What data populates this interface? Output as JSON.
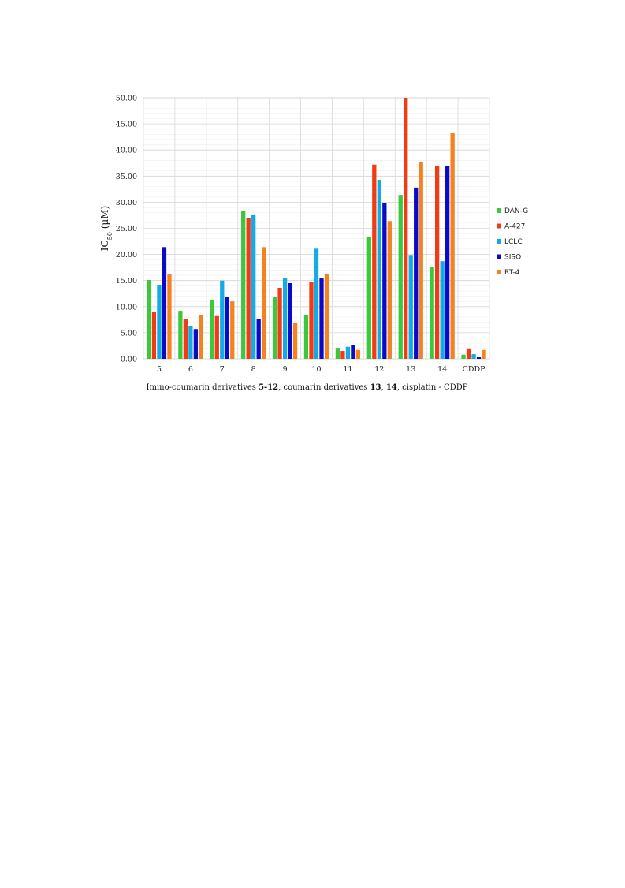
{
  "chart_data": {
    "type": "bar",
    "ylabel": {
      "main": "IC",
      "sub": "50",
      "unit": " (µM)"
    },
    "xlabel_parts": [
      {
        "text": "Imino-coumarin derivatives ",
        "bold": false
      },
      {
        "text": "5-12",
        "bold": true
      },
      {
        "text": ", coumarin derivatives ",
        "bold": false
      },
      {
        "text": "13",
        "bold": true
      },
      {
        "text": ", ",
        "bold": false
      },
      {
        "text": "14",
        "bold": true
      },
      {
        "text": ", cisplatin - CDDP",
        "bold": false
      }
    ],
    "categories": [
      "5",
      "6",
      "7",
      "8",
      "9",
      "10",
      "11",
      "12",
      "13",
      "14",
      "CDDP"
    ],
    "ylim": [
      0,
      50
    ],
    "ytick_step": 5,
    "ytick_labels": [
      "0.00",
      "5.00",
      "10.00",
      "15.00",
      "20.00",
      "25.00",
      "30.00",
      "35.00",
      "40.00",
      "45.00",
      "50.00"
    ],
    "grid": true,
    "legend_position": "right",
    "series": [
      {
        "name": "DAN-G",
        "color": "#3cc83c",
        "values": [
          15.1,
          9.2,
          11.2,
          28.3,
          11.9,
          8.4,
          2.1,
          23.3,
          31.4,
          17.6,
          0.8
        ]
      },
      {
        "name": "A-427",
        "color": "#f03c14",
        "values": [
          9.0,
          7.6,
          8.2,
          27.0,
          13.6,
          14.8,
          1.5,
          37.2,
          50.0,
          37.0,
          2.0
        ]
      },
      {
        "name": "LCLC",
        "color": "#14aae6",
        "values": [
          14.2,
          6.2,
          15.0,
          27.5,
          15.5,
          21.1,
          2.3,
          34.3,
          19.9,
          18.7,
          0.9
        ]
      },
      {
        "name": "SISO",
        "color": "#0a0ac8",
        "values": [
          21.4,
          5.7,
          11.8,
          7.7,
          14.5,
          15.4,
          2.7,
          29.9,
          32.8,
          36.9,
          0.3
        ]
      },
      {
        "name": "RT-4",
        "color": "#f5821e",
        "values": [
          16.2,
          8.4,
          11.0,
          21.4,
          6.9,
          16.3,
          1.7,
          26.4,
          37.7,
          43.2,
          1.7
        ]
      }
    ]
  }
}
